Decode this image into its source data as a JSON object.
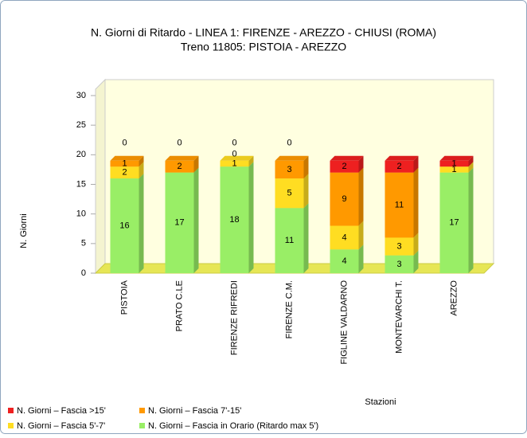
{
  "chart_data": {
    "type": "bar3d_stacked",
    "title": "N. Giorni di Ritardo - LINEA 1: FIRENZE - AREZZO - CHIUSI (ROMA)",
    "subtitle": "Treno 11805: PISTOIA - AREZZO",
    "y_label": "N. Giorni",
    "x_label": "Stazioni",
    "categories": [
      "PISTOIA",
      "PRATO C.LE",
      "FIRENZE RIFREDI",
      "FIRENZE C.M.",
      "FIGLINE VALDARNO",
      "MONTEVARCHI T.",
      "AREZZO"
    ],
    "series": [
      {
        "name": "N. Giorni – Fascia >15'",
        "color": "#ee2020",
        "values": [
          0,
          0,
          0,
          0,
          2,
          2,
          1
        ]
      },
      {
        "name": "N. Giorni – Fascia 7'-15'",
        "color": "#ff9900",
        "values": [
          1,
          2,
          0,
          3,
          9,
          11,
          0
        ]
      },
      {
        "name": "N. Giorni – Fascia 5'-7'",
        "color": "#ffdd22",
        "values": [
          2,
          0,
          1,
          5,
          4,
          3,
          1
        ]
      },
      {
        "name": "N. Giorni – Fascia in Orario (Ritardo max 5')",
        "color": "#99ee66",
        "values": [
          16,
          17,
          18,
          11,
          4,
          3,
          17
        ]
      }
    ],
    "ylim": [
      0,
      30
    ],
    "yticks": [
      0,
      5,
      10,
      15,
      20,
      25,
      30
    ]
  }
}
